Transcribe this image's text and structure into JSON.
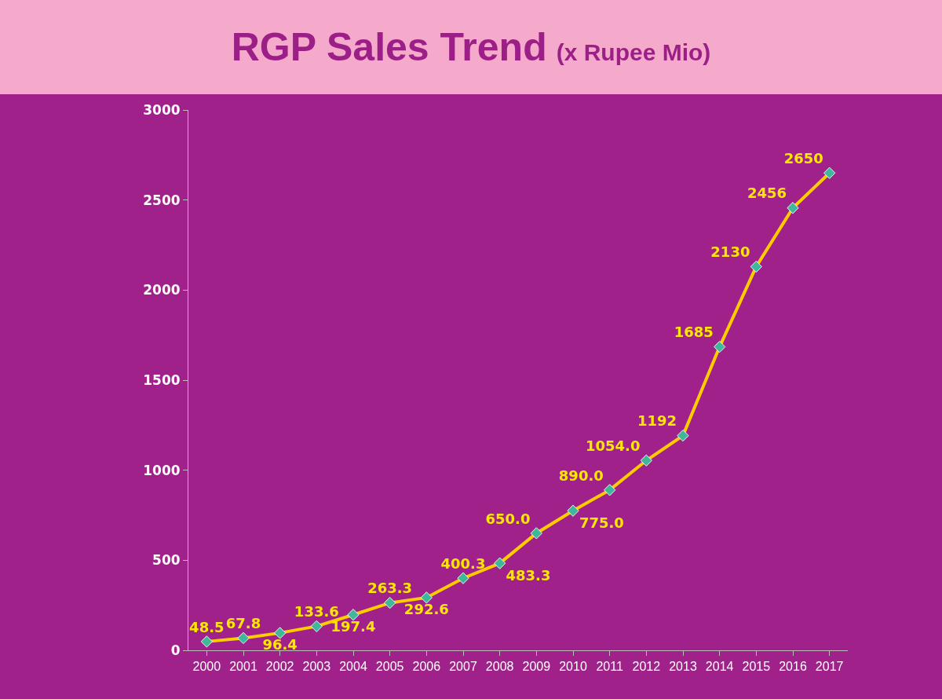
{
  "chart_data": {
    "type": "line",
    "title": "RGP Sales Trend",
    "subtitle": "(x Rupee Mio)",
    "categories": [
      "2000",
      "2001",
      "2002",
      "2003",
      "2004",
      "2005",
      "2006",
      "2007",
      "2008",
      "2009",
      "2010",
      "2011",
      "2012",
      "2013",
      "2014",
      "2015",
      "2016",
      "2017"
    ],
    "series": [
      {
        "color": "#ffcc00",
        "values": [
          48.5,
          67.8,
          96.4,
          133.6,
          197.4,
          263.3,
          292.6,
          400.3,
          483.3,
          650.0,
          775.0,
          890.0,
          1054.0,
          1192,
          1685,
          2130,
          2456,
          2650
        ],
        "value_labels": [
          "48.5",
          "67.8",
          "96.4",
          "133.6",
          "197.4",
          "263.3",
          "292.6",
          "400.3",
          "483.3",
          "650.0",
          "775.0",
          "890.0",
          "1054.0",
          "1192",
          "1685",
          "2130",
          "2456",
          "2650"
        ]
      }
    ],
    "ylim": [
      0,
      3000
    ],
    "yticks": [
      0,
      500,
      1000,
      1500,
      2000,
      2500,
      3000
    ],
    "grid": false,
    "legend": false,
    "marker": "diamond",
    "line_style": "solid"
  }
}
